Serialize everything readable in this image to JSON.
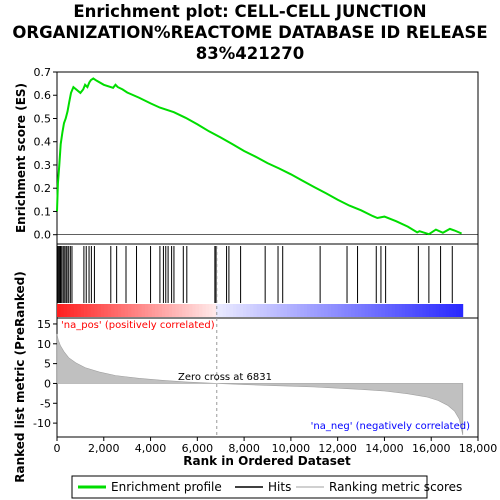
{
  "chart_data": {
    "type": "line",
    "title_lines": [
      "Enrichment plot: CELL-CELL JUNCTION",
      "ORGANIZATION%REACTOME DATABASE ID RELEASE",
      "83%421270"
    ],
    "es_panel": {
      "ylabel": "Enrichment score (ES)",
      "ylim": [
        -0.04,
        0.7
      ],
      "yticks": [
        "0.0",
        "0.1",
        "0.2",
        "0.3",
        "0.4",
        "0.5",
        "0.6",
        "0.7"
      ],
      "ytick_values": [
        0.0,
        0.1,
        0.2,
        0.3,
        0.4,
        0.5,
        0.6,
        0.7
      ],
      "series": [
        {
          "name": "Enrichment profile",
          "color": "#00dd00",
          "x": [
            0,
            40,
            100,
            160,
            230,
            300,
            370,
            450,
            520,
            600,
            700,
            1000,
            1120,
            1200,
            1300,
            1380,
            1450,
            1550,
            1700,
            2000,
            2400,
            2500,
            2600,
            2800,
            3000,
            3500,
            4000,
            4400,
            5000,
            5500,
            6000,
            6500,
            7000,
            7500,
            8000,
            8500,
            9000,
            9500,
            10000,
            10500,
            11000,
            11500,
            12000,
            12500,
            13000,
            13500,
            13700,
            14000,
            14500,
            15000,
            15400,
            15500,
            15900,
            16200,
            16500,
            16800,
            17000,
            17300
          ],
          "y": [
            0.1,
            0.22,
            0.3,
            0.39,
            0.44,
            0.48,
            0.5,
            0.53,
            0.57,
            0.61,
            0.635,
            0.61,
            0.625,
            0.645,
            0.635,
            0.655,
            0.665,
            0.672,
            0.662,
            0.645,
            0.632,
            0.645,
            0.635,
            0.625,
            0.612,
            0.59,
            0.565,
            0.547,
            0.527,
            0.503,
            0.475,
            0.445,
            0.418,
            0.39,
            0.36,
            0.335,
            0.308,
            0.285,
            0.26,
            0.232,
            0.205,
            0.178,
            0.15,
            0.125,
            0.105,
            0.08,
            0.072,
            0.078,
            0.058,
            0.035,
            0.01,
            0.015,
            0.002,
            0.022,
            0.008,
            0.025,
            0.018,
            0.005
          ]
        }
      ]
    },
    "hits_x": [
      20,
      60,
      110,
      150,
      200,
      260,
      310,
      380,
      430,
      500,
      570,
      640,
      1150,
      1250,
      1370,
      1470,
      1600,
      2300,
      2550,
      2950,
      3400,
      4000,
      4400,
      4550,
      4650,
      4750,
      4900,
      5000,
      5400,
      5550,
      6750,
      6800,
      7250,
      7350,
      7850,
      8900,
      9450,
      9650,
      11250,
      12400,
      12850,
      13650,
      13850,
      14050,
      15450,
      15900,
      16400,
      16900
    ],
    "metric_panel": {
      "ylabel": "Ranked list metric (PreRanked)",
      "xlabel": "Rank in Ordered Dataset",
      "ylim": [
        -13.5,
        16.5
      ],
      "yticks": [
        "-10",
        "-5",
        "0",
        "5",
        "10",
        "15"
      ],
      "ytick_values": [
        -10,
        -5,
        0,
        5,
        10,
        15
      ],
      "x": [
        0,
        50,
        150,
        300,
        500,
        800,
        1200,
        1800,
        2500,
        3500,
        4500,
        5500,
        6831,
        8000,
        9000,
        10000,
        11000,
        12000,
        13000,
        14000,
        15000,
        15800,
        16300,
        16700,
        17000,
        17200,
        17350
      ],
      "y": [
        12.5,
        11.0,
        9.5,
        8.0,
        6.5,
        5.2,
        4.0,
        2.9,
        2.0,
        1.3,
        0.8,
        0.4,
        0.0,
        -0.3,
        -0.5,
        -0.7,
        -0.9,
        -1.2,
        -1.5,
        -1.9,
        -2.6,
        -3.4,
        -4.3,
        -5.5,
        -7.0,
        -9.0,
        -13.0
      ],
      "fill_color": "#c0c0c0",
      "zero_cross_label": "Zero cross at 6831",
      "zero_cross": 6831,
      "pos_label": "'na_pos' (positively correlated)",
      "neg_label": "'na_neg' (negatively correlated)",
      "pos_color": "#ff0000",
      "neg_color": "#0000ff"
    },
    "xlim": [
      0,
      18000
    ],
    "xticks": [
      "0",
      "2,000",
      "4,000",
      "6,000",
      "8,000",
      "10,000",
      "12,000",
      "14,000",
      "16,000",
      "18,000"
    ],
    "xtick_values": [
      0,
      2000,
      4000,
      6000,
      8000,
      10000,
      12000,
      14000,
      16000,
      18000
    ],
    "total_ranks": 17350,
    "legend": [
      {
        "label": "Enrichment profile",
        "color": "#00dd00",
        "kind": "line"
      },
      {
        "label": "Hits",
        "color": "#000000",
        "kind": "line"
      },
      {
        "label": "Ranking metric scores",
        "color": "#c0c0c0",
        "kind": "line"
      }
    ]
  }
}
